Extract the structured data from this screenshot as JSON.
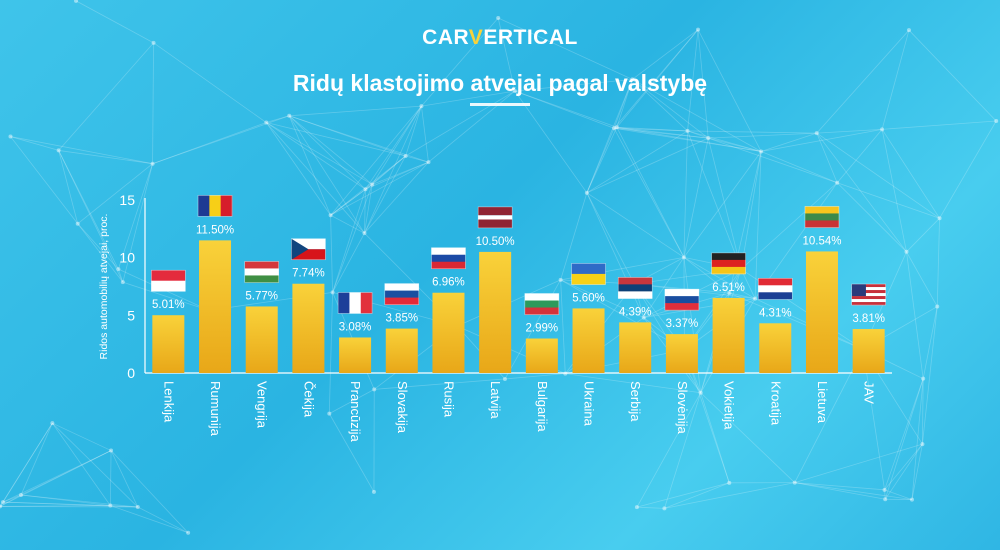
{
  "logo": {
    "part1": "CAR",
    "accent": "V",
    "part2": "ERTICAL"
  },
  "colors": {
    "bar_top": "#f9d23a",
    "bar_bottom": "#e8a718",
    "text": "#ffffff",
    "accent": "#f7d23a"
  },
  "chart_data": {
    "type": "bar",
    "title": "Ridų klastojimo atvejai pagal valstybę",
    "xlabel": "",
    "ylabel": "Ridos automobilių atvejai, proc.",
    "ylim": [
      0,
      15
    ],
    "yticks": [
      0,
      5,
      10,
      15
    ],
    "grid": false,
    "legend": "none",
    "categories": [
      "Lenkija",
      "Rumunija",
      "Vengrija",
      "Čekija",
      "Prancūzija",
      "Slovakija",
      "Rusija",
      "Latvija",
      "Bulgarija",
      "Ukraina",
      "Serbija",
      "Slovėnija",
      "Vokietija",
      "Kroatija",
      "Lietuva",
      "JAV"
    ],
    "values": [
      5.01,
      11.5,
      5.77,
      7.74,
      3.08,
      3.85,
      6.96,
      10.5,
      2.99,
      5.6,
      4.39,
      3.37,
      6.51,
      4.31,
      10.54,
      3.81
    ],
    "value_labels": [
      "5.01%",
      "11.50%",
      "5.77%",
      "7.74%",
      "3.08%",
      "3.85%",
      "6.96%",
      "10.50%",
      "2.99%",
      "5.60%",
      "4.39%",
      "3.37%",
      "6.51%",
      "4.31%",
      "10.54%",
      "3.81%"
    ],
    "flags": [
      {
        "type": "h",
        "colors": [
          "#e42b3d",
          "#ffffff"
        ]
      },
      {
        "type": "v",
        "colors": [
          "#1d3a93",
          "#f7cf17",
          "#d61e2b"
        ]
      },
      {
        "type": "h",
        "colors": [
          "#d5383c",
          "#ffffff",
          "#3f8f44"
        ]
      },
      {
        "type": "cz",
        "colors": [
          "#ffffff",
          "#d7141a",
          "#11457e"
        ]
      },
      {
        "type": "v",
        "colors": [
          "#1d3f99",
          "#ffffff",
          "#e2313c"
        ]
      },
      {
        "type": "h",
        "colors": [
          "#ffffff",
          "#1a4fa0",
          "#e32a38"
        ]
      },
      {
        "type": "h",
        "colors": [
          "#ffffff",
          "#1b4aa6",
          "#d92834"
        ]
      },
      {
        "type": "h3",
        "colors": [
          "#8f2433",
          "#ffffff",
          "#8f2433"
        ]
      },
      {
        "type": "h",
        "colors": [
          "#ffffff",
          "#2c9a5b",
          "#d5333b"
        ]
      },
      {
        "type": "h",
        "colors": [
          "#2f6bc7",
          "#f7d116"
        ]
      },
      {
        "type": "h",
        "colors": [
          "#c6363c",
          "#0c4077",
          "#ffffff"
        ]
      },
      {
        "type": "h",
        "colors": [
          "#ffffff",
          "#1a4ea0",
          "#e22e3b"
        ]
      },
      {
        "type": "h",
        "colors": [
          "#222222",
          "#dd2220",
          "#f5c518"
        ]
      },
      {
        "type": "h",
        "colors": [
          "#e12a35",
          "#ffffff",
          "#1b3f94"
        ]
      },
      {
        "type": "h",
        "colors": [
          "#f7c51d",
          "#3b8a4a",
          "#c93235"
        ]
      },
      {
        "type": "us",
        "colors": [
          "#c8303a",
          "#ffffff",
          "#2a3b7b"
        ]
      }
    ]
  }
}
